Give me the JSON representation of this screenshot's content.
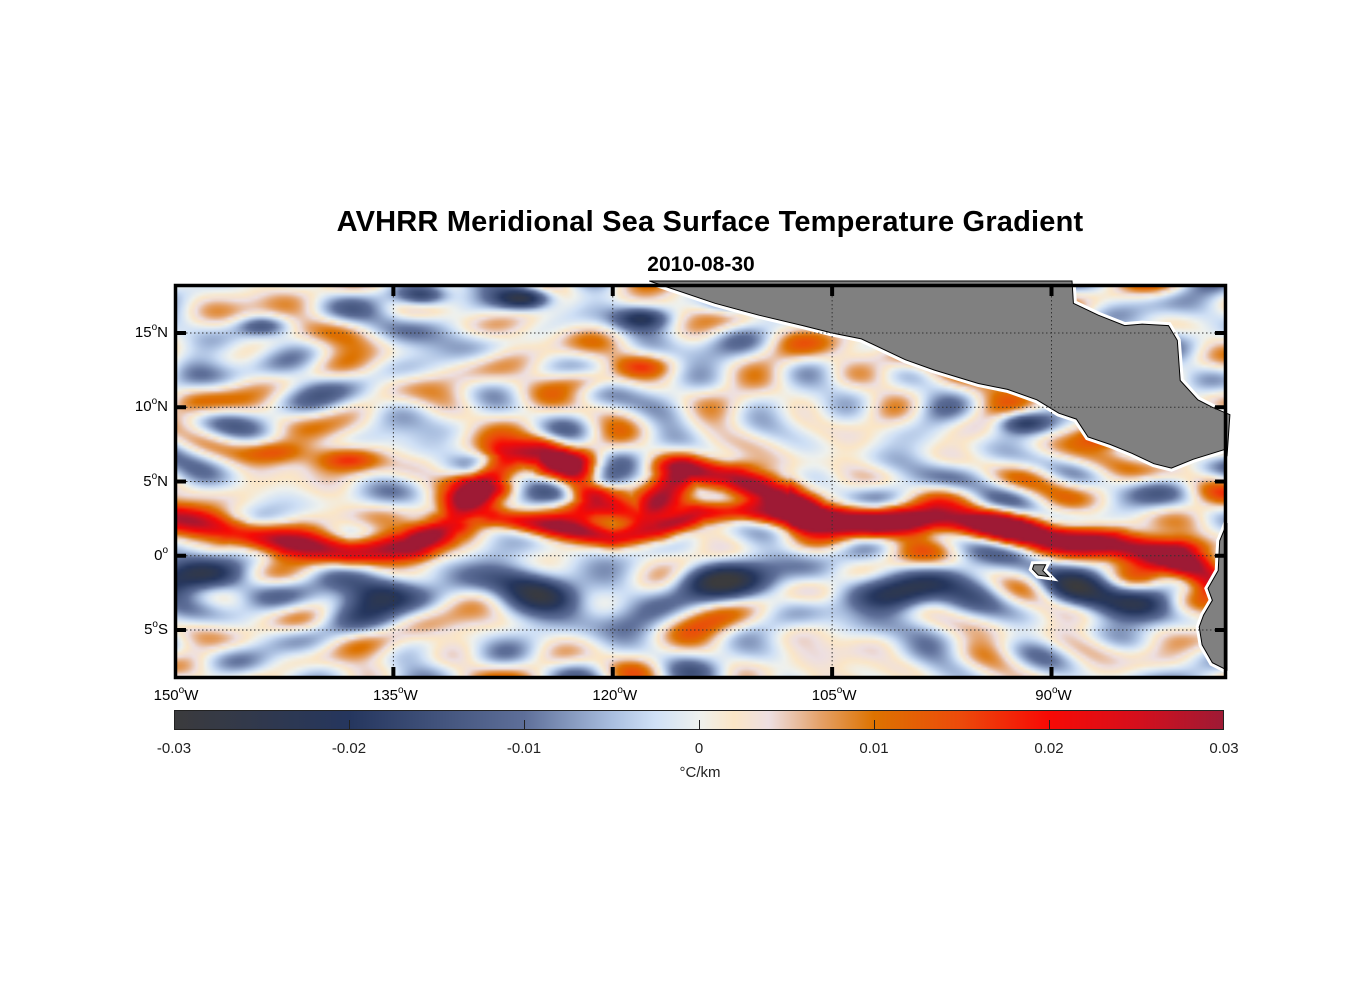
{
  "title": "AVHRR Meridional Sea Surface Temperature Gradient",
  "subtitle": "2010-08-30",
  "chart_data": {
    "type": "heatmap",
    "title": "AVHRR Meridional Sea Surface Temperature Gradient",
    "subtitle": "2010-08-30",
    "projection": "equirectangular",
    "lon_range": [
      -150,
      -78
    ],
    "lat_range": [
      -8.3,
      18.3
    ],
    "grid": true,
    "grid_style": "dotted",
    "x_ticks": [
      {
        "value": -150,
        "label": "150",
        "hemi": "W"
      },
      {
        "value": -135,
        "label": "135",
        "hemi": "W"
      },
      {
        "value": -120,
        "label": "120",
        "hemi": "W"
      },
      {
        "value": -105,
        "label": "105",
        "hemi": "W"
      },
      {
        "value": -90,
        "label": "90",
        "hemi": "W"
      }
    ],
    "y_ticks": [
      {
        "value": 15,
        "label": "15",
        "hemi": "N"
      },
      {
        "value": 10,
        "label": "10",
        "hemi": "N"
      },
      {
        "value": 5,
        "label": "5",
        "hemi": "N"
      },
      {
        "value": 0,
        "label": "0",
        "hemi": ""
      },
      {
        "value": -5,
        "label": "5",
        "hemi": "S"
      }
    ],
    "colorbar": {
      "label": "°C/km",
      "range": [
        -0.03,
        0.03
      ],
      "ticks": [
        -0.03,
        -0.02,
        -0.01,
        0,
        0.01,
        0.02,
        0.03
      ],
      "tick_labels": [
        "-0.03",
        "-0.02",
        "-0.01",
        "0",
        "0.01",
        "0.02",
        "0.03"
      ],
      "placement": "bottom",
      "colormap_stops": [
        {
          "value": -0.03,
          "color": "#3b3b3d"
        },
        {
          "value": -0.02,
          "color": "#25365e"
        },
        {
          "value": -0.01,
          "color": "#5e6f99"
        },
        {
          "value": -0.005,
          "color": "#a9bedf"
        },
        {
          "value": -0.0025,
          "color": "#cfe0f6"
        },
        {
          "value": 0,
          "color": "#eef1ee"
        },
        {
          "value": 0.002,
          "color": "#fbe6c6"
        },
        {
          "value": 0.004,
          "color": "#eddfe2"
        },
        {
          "value": 0.007,
          "color": "#e4a066"
        },
        {
          "value": 0.01,
          "color": "#dd7300"
        },
        {
          "value": 0.015,
          "color": "#ec4a0b"
        },
        {
          "value": 0.02,
          "color": "#f70a05"
        },
        {
          "value": 0.025,
          "color": "#d60f1c"
        },
        {
          "value": 0.03,
          "color": "#9e1a35"
        }
      ]
    },
    "features": {
      "equatorial_front": {
        "description": "Strong positive gradient band (warm to the north) along ~1-3N, wavy tropical instability wave cusp near 128W reaching ~7N",
        "path": [
          [
            -150,
            2.7
          ],
          [
            -146,
            1.7
          ],
          [
            -142,
            0.8
          ],
          [
            -138,
            0.3
          ],
          [
            -134,
            0.6
          ],
          [
            -131,
            2.2
          ],
          [
            -129,
            4.8
          ],
          [
            -127,
            6.8
          ],
          [
            -125,
            7.2
          ],
          [
            -123,
            6.2
          ],
          [
            -121,
            3.5
          ],
          [
            -118,
            2.5
          ],
          [
            -115,
            5.8
          ],
          [
            -112,
            5.4
          ],
          [
            -109,
            4.1
          ],
          [
            -106,
            2.6
          ],
          [
            -102,
            2.2
          ],
          [
            -98,
            2.4
          ],
          [
            -94,
            2.1
          ],
          [
            -90,
            1.2
          ],
          [
            -86,
            0.8
          ],
          [
            -82,
            0.0
          ],
          [
            -79,
            -1.5
          ]
        ],
        "peak_value": 0.03
      },
      "secondary_front": {
        "path": [
          [
            -128,
            2.6
          ],
          [
            -124,
            1.9
          ],
          [
            -120,
            1.2
          ],
          [
            -117,
            1.6
          ],
          [
            -114,
            2.9
          ],
          [
            -111,
            3.0
          ],
          [
            -107,
            2.5
          ]
        ],
        "peak_value": 0.022
      },
      "negative_band_south": {
        "description": "Negative gradient band just south of the equator, ~1-4S",
        "lat_center": -2.2,
        "peak_value": -0.022
      },
      "orange_patches_north": [
        {
          "lon": -143,
          "lat": 7.0,
          "value": 0.012
        },
        {
          "lon": -138,
          "lat": 6.5,
          "value": 0.014
        },
        {
          "lon": -122,
          "lat": 11.8,
          "value": 0.012
        },
        {
          "lon": -118,
          "lat": 12.8,
          "value": 0.013
        },
        {
          "lon": -100,
          "lat": 13.5,
          "value": 0.012
        },
        {
          "lon": -95,
          "lat": 12.8,
          "value": 0.014
        },
        {
          "lon": -89,
          "lat": 11.6,
          "value": 0.018
        },
        {
          "lon": -86,
          "lat": 8.0,
          "value": 0.018
        }
      ],
      "blue_patches_north": [
        {
          "lon": -133,
          "lat": 17.5,
          "value": -0.02
        },
        {
          "lon": -126,
          "lat": 17.3,
          "value": -0.024
        },
        {
          "lon": -144,
          "lat": 15.5,
          "value": -0.014
        },
        {
          "lon": -118,
          "lat": 16.0,
          "value": -0.016
        },
        {
          "lon": -112,
          "lat": 17.0,
          "value": -0.015
        },
        {
          "lon": -121,
          "lat": 5.0,
          "value": -0.018
        },
        {
          "lon": -92,
          "lat": 9.0,
          "value": -0.015
        }
      ],
      "land": "Central America and Mexico coastline in the upper right; Galapagos island near 91W 1S; South American coast at right edge 2-8S",
      "land_color": "#808080"
    }
  }
}
